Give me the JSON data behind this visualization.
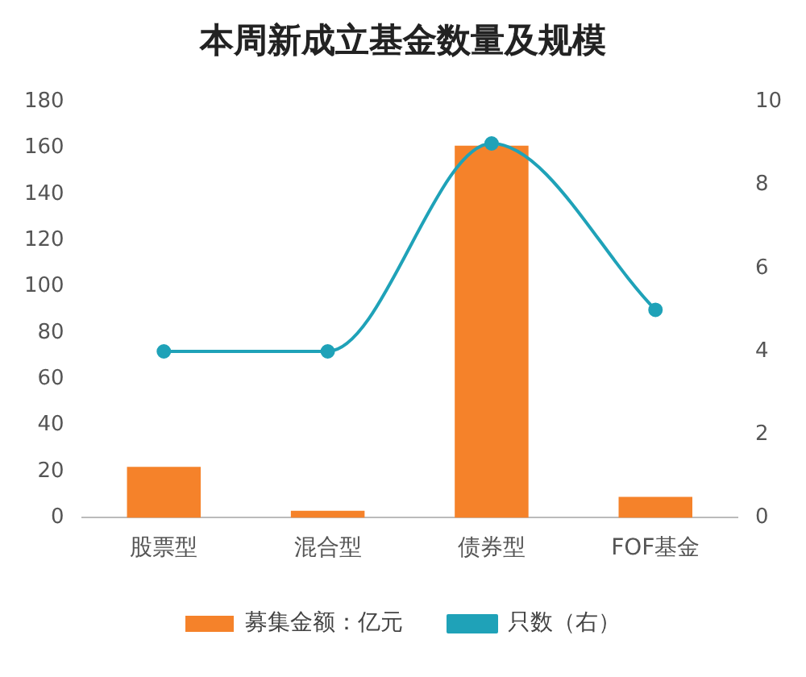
{
  "chart_data": {
    "type": "bar",
    "title": "本周新成立基金数量及规模",
    "categories": [
      "股票型",
      "混合型",
      "债券型",
      "FOF基金"
    ],
    "series": [
      {
        "name": "募集金额：亿元",
        "color": "#f5822a",
        "values": [
          22,
          3,
          161,
          9
        ]
      },
      {
        "name": "只数（右）",
        "type": "line",
        "axis": "y2",
        "color": "#1fa2b8",
        "values": [
          4,
          4,
          9,
          5
        ]
      }
    ],
    "ylim": [
      0,
      180
    ],
    "yticks": [
      0,
      20,
      40,
      60,
      80,
      100,
      120,
      140,
      160,
      180
    ],
    "y2lim": [
      0,
      10
    ],
    "y2ticks": [
      0,
      2,
      4,
      6,
      8,
      10
    ],
    "grid": false,
    "legend": "bottom",
    "marker": "circle"
  }
}
